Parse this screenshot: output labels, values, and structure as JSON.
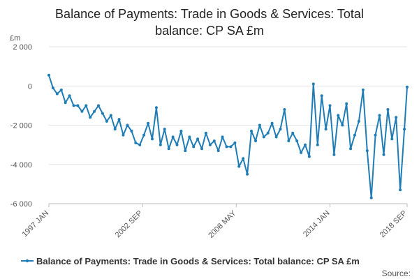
{
  "chart_data": {
    "type": "line",
    "title_lines": [
      "Balance of Payments: Trade in Goods & Services: Total",
      "balance: CP SA £m"
    ],
    "unit_label": "£m",
    "x_range": [
      "1997-01",
      "2018-09"
    ],
    "x_ticks": [
      {
        "label": "1997 JAN",
        "date": "1997-01"
      },
      {
        "label": "2002 SEP",
        "date": "2002-09"
      },
      {
        "label": "2008 MAY",
        "date": "2008-05"
      },
      {
        "label": "2014 JAN",
        "date": "2014-01"
      },
      {
        "label": "2018 SEP",
        "date": "2018-09"
      }
    ],
    "y_ticks": [
      {
        "label": "2 000",
        "value": 2000
      },
      {
        "label": "0",
        "value": 0
      },
      {
        "label": "-2 000",
        "value": -2000
      },
      {
        "label": "-4 000",
        "value": -4000
      },
      {
        "label": "-6 000",
        "value": -6000
      }
    ],
    "ylim": [
      -6000,
      2000
    ],
    "grid": true,
    "legend_position": "bottom",
    "series": [
      {
        "name": "Balance of Payments: Trade in Goods & Services: Total balance: CP SA £m",
        "color": "#1f7cb5",
        "points": [
          [
            "1997-01",
            550
          ],
          [
            "1997-04",
            -100
          ],
          [
            "1997-07",
            -400
          ],
          [
            "1997-10",
            -200
          ],
          [
            "1998-01",
            -850
          ],
          [
            "1998-04",
            -500
          ],
          [
            "1998-07",
            -1000
          ],
          [
            "1998-10",
            -1000
          ],
          [
            "1999-01",
            -1300
          ],
          [
            "1999-04",
            -1000
          ],
          [
            "1999-07",
            -1600
          ],
          [
            "1999-10",
            -1300
          ],
          [
            "2000-01",
            -1000
          ],
          [
            "2000-04",
            -1400
          ],
          [
            "2000-07",
            -1800
          ],
          [
            "2000-10",
            -1500
          ],
          [
            "2001-01",
            -2200
          ],
          [
            "2001-04",
            -1700
          ],
          [
            "2001-07",
            -2500
          ],
          [
            "2001-10",
            -2000
          ],
          [
            "2002-01",
            -2300
          ],
          [
            "2002-04",
            -2900
          ],
          [
            "2002-07",
            -3000
          ],
          [
            "2002-10",
            -2500
          ],
          [
            "2003-01",
            -1900
          ],
          [
            "2003-04",
            -2700
          ],
          [
            "2003-07",
            -1100
          ],
          [
            "2003-10",
            -3000
          ],
          [
            "2004-01",
            -2200
          ],
          [
            "2004-04",
            -3200
          ],
          [
            "2004-07",
            -2600
          ],
          [
            "2004-10",
            -3000
          ],
          [
            "2005-01",
            -2300
          ],
          [
            "2005-04",
            -3300
          ],
          [
            "2005-07",
            -2600
          ],
          [
            "2005-10",
            -3100
          ],
          [
            "2006-01",
            -2700
          ],
          [
            "2006-04",
            -3200
          ],
          [
            "2006-07",
            -2400
          ],
          [
            "2006-10",
            -3000
          ],
          [
            "2007-01",
            -2800
          ],
          [
            "2007-04",
            -3300
          ],
          [
            "2007-07",
            -2600
          ],
          [
            "2007-10",
            -3100
          ],
          [
            "2008-01",
            -3100
          ],
          [
            "2008-04",
            -2900
          ],
          [
            "2008-07",
            -4100
          ],
          [
            "2008-10",
            -3700
          ],
          [
            "2009-01",
            -4500
          ],
          [
            "2009-04",
            -2300
          ],
          [
            "2009-07",
            -2800
          ],
          [
            "2009-10",
            -2000
          ],
          [
            "2010-01",
            -2600
          ],
          [
            "2010-04",
            -2400
          ],
          [
            "2010-07",
            -1900
          ],
          [
            "2010-10",
            -2600
          ],
          [
            "2011-01",
            -2200
          ],
          [
            "2011-04",
            -1200
          ],
          [
            "2011-07",
            -2800
          ],
          [
            "2011-10",
            -2400
          ],
          [
            "2012-01",
            -2800
          ],
          [
            "2012-04",
            -3400
          ],
          [
            "2012-07",
            -3000
          ],
          [
            "2012-10",
            -3600
          ],
          [
            "2013-01",
            100
          ],
          [
            "2013-04",
            -3000
          ],
          [
            "2013-07",
            -500
          ],
          [
            "2013-10",
            -2200
          ],
          [
            "2014-01",
            -1000
          ],
          [
            "2014-04",
            -3500
          ],
          [
            "2014-07",
            -1500
          ],
          [
            "2014-10",
            -2000
          ],
          [
            "2015-01",
            -900
          ],
          [
            "2015-04",
            -3200
          ],
          [
            "2015-07",
            -2500
          ],
          [
            "2015-10",
            -1800
          ],
          [
            "2016-01",
            -200
          ],
          [
            "2016-04",
            -3300
          ],
          [
            "2016-07",
            -5700
          ],
          [
            "2016-10",
            -2500
          ],
          [
            "2017-01",
            -1500
          ],
          [
            "2017-04",
            -3500
          ],
          [
            "2017-07",
            -1200
          ],
          [
            "2017-10",
            -2700
          ],
          [
            "2018-01",
            -1600
          ],
          [
            "2018-04",
            -5300
          ],
          [
            "2018-07",
            -2200
          ],
          [
            "2018-09",
            -50
          ]
        ]
      }
    ]
  },
  "legend": {
    "label": "Balance of Payments: Trade in Goods & Services: Total balance: CP SA £m"
  },
  "source": {
    "label": "Source:"
  }
}
